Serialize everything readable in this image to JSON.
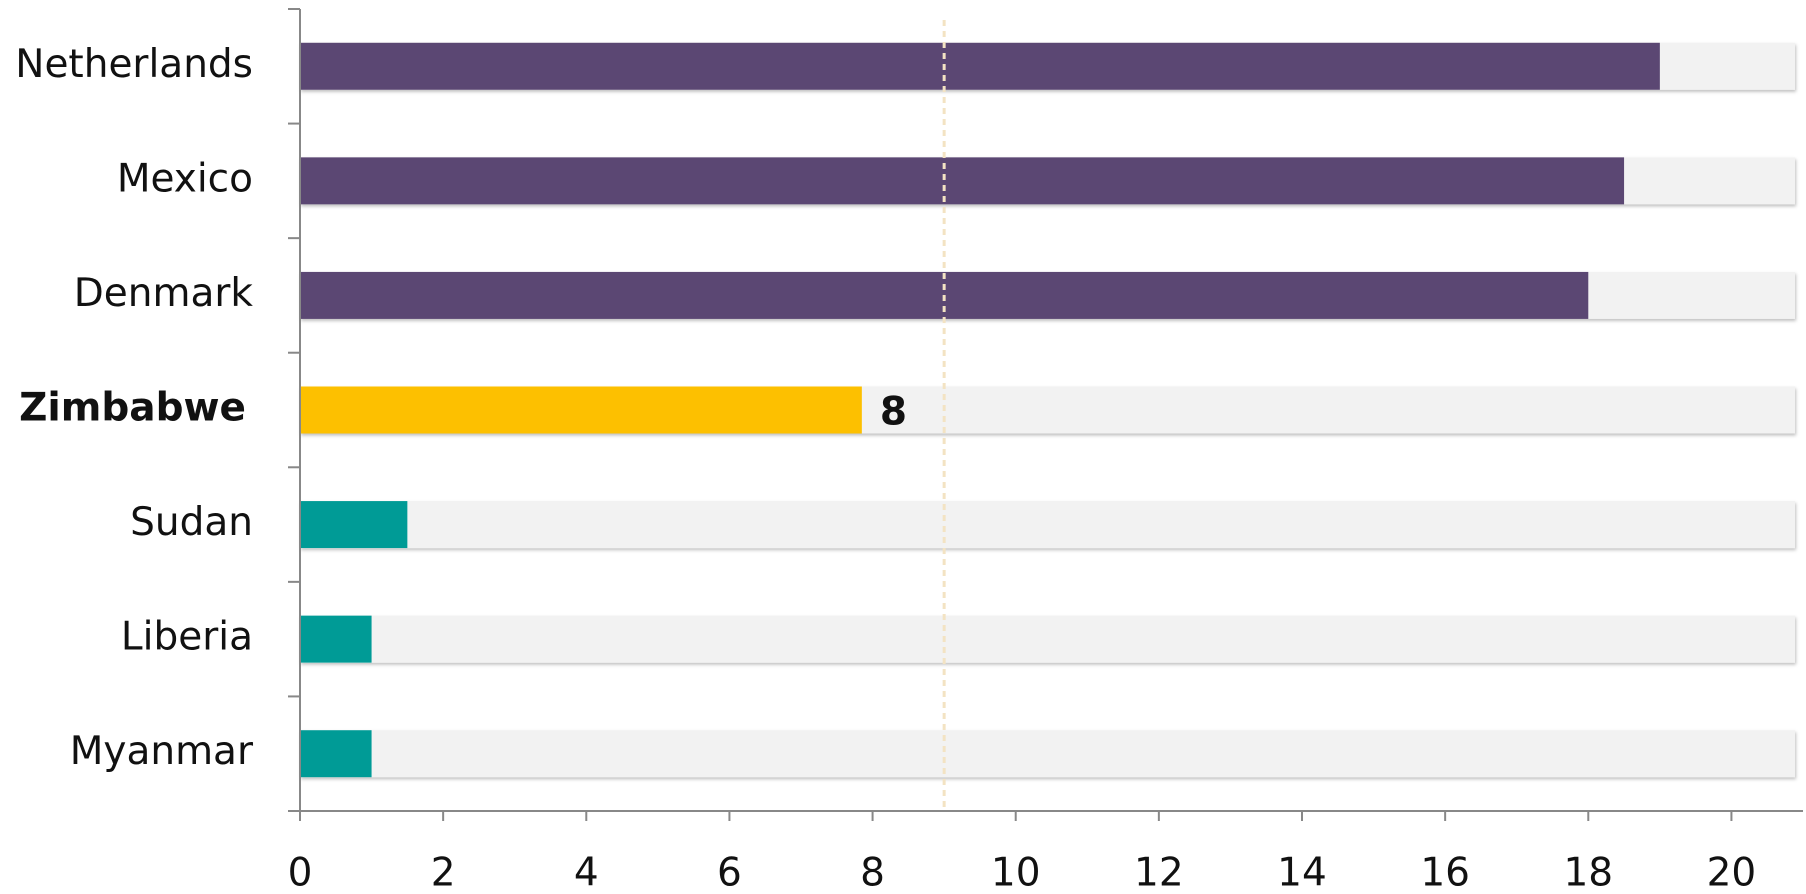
{
  "chart_data": {
    "type": "bar",
    "orientation": "horizontal",
    "categories": [
      "Netherlands",
      "Mexico",
      "Denmark",
      "Zimbabwe",
      "Sudan",
      "Liberia",
      "Myanmar"
    ],
    "values": [
      19,
      18.5,
      18,
      7.85,
      1.5,
      1,
      1
    ],
    "value_labels": [
      null,
      null,
      null,
      "8",
      null,
      null,
      null
    ],
    "colors": [
      "#5b4773",
      "#5b4773",
      "#5b4773",
      "#fdc000",
      "#009b96",
      "#009b96",
      "#009b96"
    ],
    "highlight": 3,
    "reference": 9,
    "xlim": [
      0,
      21
    ],
    "xticks": [
      0,
      2,
      4,
      6,
      8,
      10,
      12,
      14,
      16,
      18,
      20
    ]
  }
}
